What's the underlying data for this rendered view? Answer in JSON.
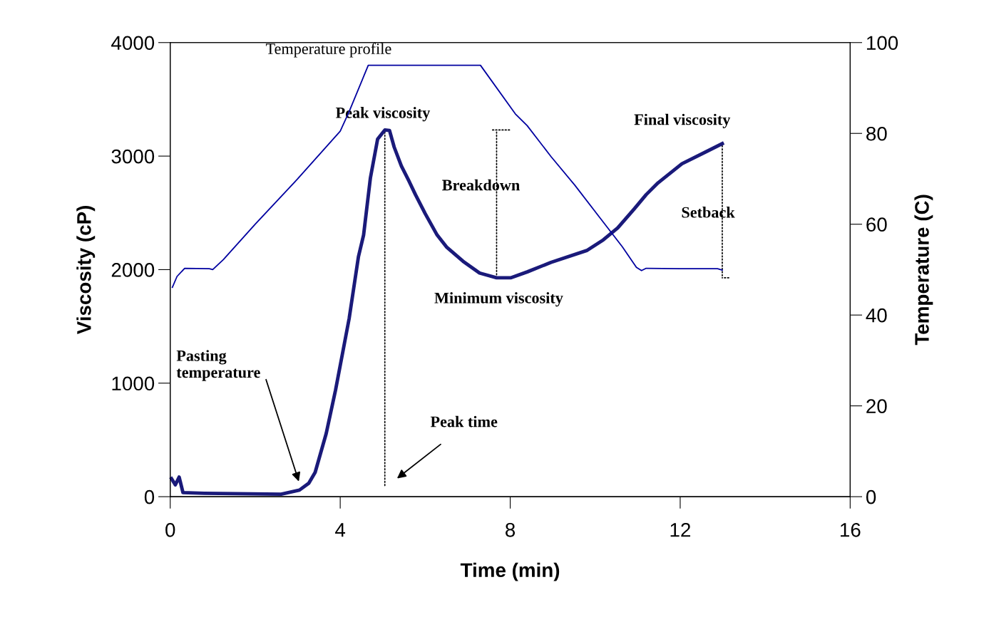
{
  "chart_data": {
    "type": "line",
    "xlabel": "Time (min)",
    "ylabel": "Viscosity (cP)",
    "y2label": "Temperature (C)",
    "xlim": [
      0,
      16
    ],
    "xticks": [
      0,
      4,
      8,
      12,
      16
    ],
    "ylim": [
      0,
      4000
    ],
    "yticks": [
      0,
      1000,
      2000,
      3000,
      4000
    ],
    "y2lim": [
      0,
      100
    ],
    "y2ticks": [
      0,
      20,
      40,
      60,
      80,
      100
    ],
    "grid": false,
    "legend": false,
    "marker": "none",
    "line_style": "solid",
    "series": [
      {
        "name": "Temperature profile",
        "color": "#0000a0",
        "axis": "y2",
        "x": [
          0.05,
          0.16,
          0.34,
          0.92,
          1.0,
          1.25,
          2.0,
          3.0,
          4.0,
          4.21,
          4.66,
          5.0,
          7.0,
          7.3,
          8.12,
          8.4,
          8.96,
          9.52,
          10.08,
          10.64,
          10.97,
          11.09,
          11.2,
          12.0,
          12.88,
          12.99
        ],
        "values": [
          46.1,
          48.5,
          50.3,
          50.2,
          50,
          52.2,
          60,
          70,
          80.5,
          84.8,
          95,
          95,
          95,
          95,
          84.3,
          81.7,
          74.9,
          68.6,
          61.8,
          55,
          50.5,
          49.8,
          50.3,
          50.2,
          50.2,
          49.9
        ]
      },
      {
        "color": "#1a1a7a",
        "x": [
          0.03,
          0.12,
          0.21,
          0.3,
          0.8,
          2.61,
          3.04,
          3.26,
          3.41,
          3.67,
          3.89,
          4.21,
          4.43,
          4.55,
          4.71,
          4.88,
          5.05,
          5.16,
          5.27,
          5.44,
          5.61,
          5.77,
          6.0,
          6.28,
          6.5,
          6.89,
          7.28,
          7.68,
          8.01,
          8.4,
          8.96,
          9.8,
          10.19,
          10.53,
          10.92,
          11.2,
          11.48,
          12.04,
          12.6,
          12.99
        ],
        "values": [
          159,
          104,
          173,
          36,
          30,
          22,
          58,
          118,
          214,
          556,
          939,
          1569,
          2116,
          2305,
          2807,
          3150,
          3230,
          3226,
          3079,
          2912,
          2786,
          2661,
          2493,
          2305,
          2200,
          2074,
          1970,
          1928,
          1928,
          1980,
          2064,
          2168,
          2262,
          2367,
          2535,
          2661,
          2765,
          2932,
          3037,
          3110
        ]
      }
    ],
    "annotations": [
      {
        "text": "Peak viscosity",
        "x": 5.05,
        "y": 3230
      },
      "Breakdown",
      {
        "text": "Final viscosity",
        "x": 12.98,
        "y": 3100
      },
      "Setback",
      {
        "text": "Minimum viscosity",
        "x": 7.73,
        "y": 1930
      },
      "Pasting temperature",
      "Peak time"
    ]
  }
}
